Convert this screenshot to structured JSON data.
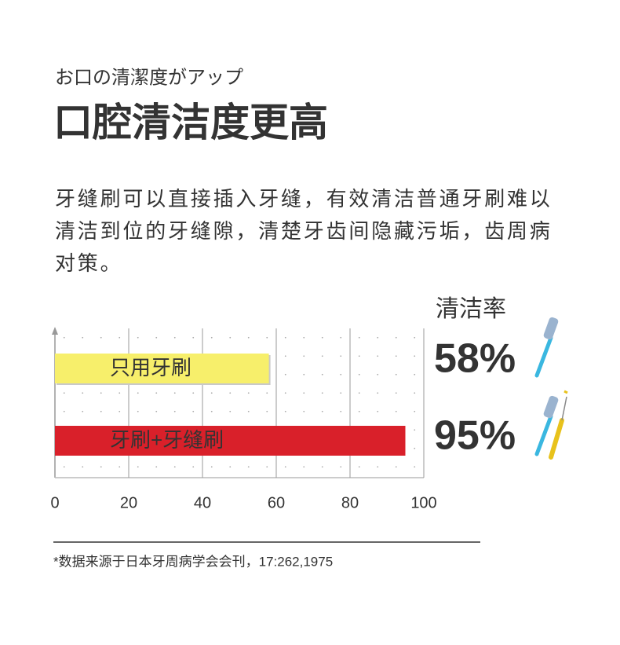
{
  "chart_data": {
    "type": "bar",
    "subtitle": "お口の清潔度がアップ",
    "title": "口腔清洁度更高",
    "description": [
      "牙缝刷可以直接插入牙缝，有效清洁普通牙刷难以",
      "清洁到位的牙缝隙，清楚牙齿间隐藏污垢，齿周病",
      "对策。"
    ],
    "value_label_title": "清洁率",
    "categories": [
      "只用牙刷",
      "牙刷+牙缝刷"
    ],
    "values": [
      58,
      95
    ],
    "value_labels": [
      "58%",
      "95%"
    ],
    "colors": [
      "#f7ef6b",
      "#d9202a"
    ],
    "value_label_colors": [
      "#333333",
      "#d9202a"
    ],
    "xlim": [
      0,
      100
    ],
    "xticks": [
      0,
      20,
      40,
      60,
      80,
      100
    ],
    "grid": true,
    "source": "*数据来源于日本牙周病学会会刊，17:262,1975"
  }
}
